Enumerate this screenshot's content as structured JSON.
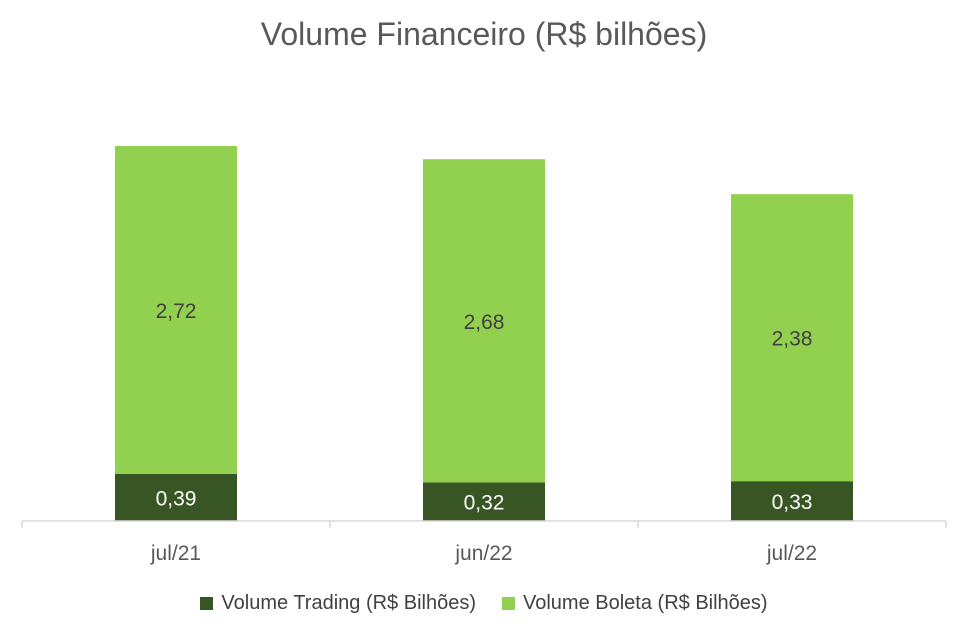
{
  "chart_data": {
    "type": "bar",
    "stacked": true,
    "title": "Volume Financeiro (R$ bilhões)",
    "categories": [
      "jul/21",
      "jun/22",
      "jul/22"
    ],
    "series": [
      {
        "name": "Volume Trading (R$ Bilhões)",
        "values": [
          0.39,
          0.32,
          0.33
        ],
        "labels": [
          "0,39",
          "0,32",
          "0,33"
        ],
        "color": "#375623"
      },
      {
        "name": "Volume Boleta (R$ Bilhões)",
        "values": [
          2.72,
          2.68,
          2.38
        ],
        "labels": [
          "2,72",
          "2,68",
          "2,38"
        ],
        "color": "#92D050"
      }
    ],
    "grid": false,
    "legend_position": "bottom",
    "label_colors": {
      "dark": "#ffffff",
      "light": "#404040"
    },
    "axis_color": "#d9d9d9",
    "text_color": "#595959"
  }
}
